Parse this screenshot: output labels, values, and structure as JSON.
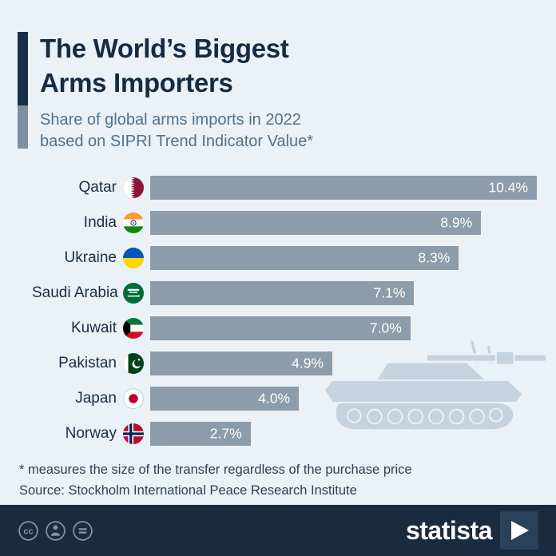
{
  "header": {
    "title_lines": [
      "The World’s Biggest",
      "Arms Importers"
    ],
    "subtitle_lines": [
      "Share of global arms imports in 2022",
      "based on SIPRI Trend Indicator Value*"
    ]
  },
  "chart_data": {
    "type": "bar",
    "orientation": "horizontal",
    "title": "The World’s Biggest Arms Importers",
    "subtitle": "Share of global arms imports in 2022 based on SIPRI Trend Indicator Value*",
    "categories": [
      "Qatar",
      "India",
      "Ukraine",
      "Saudi Arabia",
      "Kuwait",
      "Pakistan",
      "Japan",
      "Norway"
    ],
    "values": [
      10.4,
      8.9,
      8.3,
      7.1,
      7.0,
      4.9,
      4.0,
      2.7
    ],
    "value_labels": [
      "10.4%",
      "8.9%",
      "8.3%",
      "7.1%",
      "7.0%",
      "4.9%",
      "4.0%",
      "2.7%"
    ],
    "flags": [
      "qatar",
      "india",
      "ukraine",
      "saudi-arabia",
      "kuwait",
      "pakistan",
      "japan",
      "norway"
    ],
    "xlim": [
      0,
      10.4
    ],
    "value_suffix": "%",
    "grid": false,
    "legend": false,
    "bar_color": "#8C9CAA",
    "value_color": "#ffffff"
  },
  "footer": {
    "footnote": "* measures the size of the transfer regardless of the purchase price",
    "source": "Source: Stockholm International Peace Research Institute"
  },
  "brand": {
    "name": "statista",
    "license_icons": [
      "cc-icon",
      "attribution-person-icon",
      "equals-icon"
    ]
  },
  "colors": {
    "background": "#EAF1F7",
    "bar": "#8C9CAA",
    "title": "#142B43",
    "subtitle": "#527189",
    "footer_bg": "#1B2B3F",
    "tank_illustration": "#C5D2DF"
  }
}
